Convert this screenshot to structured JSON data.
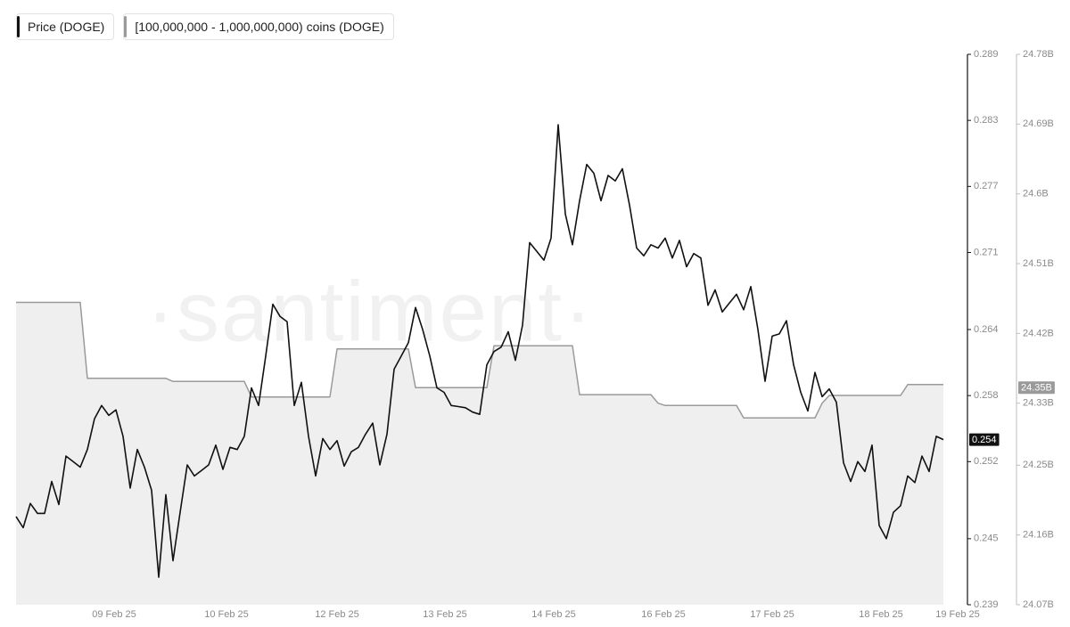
{
  "chart_data": {
    "type": "line",
    "watermark": "·santiment·",
    "series": [
      {
        "name": "Price (DOGE)",
        "color": "#111111",
        "axis": "y",
        "values": [
          0.247,
          0.246,
          0.2482,
          0.2473,
          0.2473,
          0.2502,
          0.2481,
          0.2525,
          0.252,
          0.2515,
          0.2531,
          0.2559,
          0.2571,
          0.2562,
          0.2567,
          0.2543,
          0.2496,
          0.2531,
          0.2515,
          0.2494,
          0.2415,
          0.249,
          0.243,
          0.2474,
          0.2517,
          0.2507,
          0.2512,
          0.2517,
          0.2535,
          0.2513,
          0.2533,
          0.2531,
          0.2543,
          0.2587,
          0.2571,
          0.2616,
          0.2663,
          0.2652,
          0.2647,
          0.2571,
          0.2592,
          0.2543,
          0.2507,
          0.2541,
          0.2531,
          0.2539,
          0.2516,
          0.2529,
          0.2533,
          0.2545,
          0.2555,
          0.2517,
          0.2545,
          0.2604,
          0.2616,
          0.2628,
          0.266,
          0.264,
          0.2616,
          0.2587,
          0.2583,
          0.2571,
          0.257,
          0.2569,
          0.2565,
          0.2563,
          0.2608,
          0.262,
          0.2624,
          0.2638,
          0.2612,
          0.2644,
          0.2719,
          0.2711,
          0.2703,
          0.2723,
          0.2826,
          0.2745,
          0.2717,
          0.2757,
          0.279,
          0.2782,
          0.2757,
          0.278,
          0.2775,
          0.2786,
          0.2753,
          0.2714,
          0.2707,
          0.2717,
          0.2714,
          0.2723,
          0.2705,
          0.2721,
          0.2697,
          0.2709,
          0.2705,
          0.2662,
          0.2676,
          0.2656,
          0.2664,
          0.2672,
          0.2658,
          0.2679,
          0.264,
          0.2593,
          0.2634,
          0.2636,
          0.2648,
          0.2608,
          0.2583,
          0.2566,
          0.2601,
          0.2579,
          0.2586,
          0.2574,
          0.2519,
          0.2502,
          0.252,
          0.2511,
          0.2535,
          0.2462,
          0.245,
          0.2474,
          0.248,
          0.2507,
          0.2501,
          0.2525,
          0.2511,
          0.2543,
          0.254
        ]
      },
      {
        "name": "[100,000,000 - 1,000,000,000) coins (DOGE)",
        "color": "#9a9a9a",
        "fill": "#efefef",
        "axis": "y2",
        "values": [
          24460000000,
          24460000000,
          24460000000,
          24460000000,
          24460000000,
          24460000000,
          24460000000,
          24460000000,
          24460000000,
          24460000000,
          24362000000,
          24362000000,
          24362000000,
          24362000000,
          24362000000,
          24362000000,
          24362000000,
          24362000000,
          24362000000,
          24362000000,
          24362000000,
          24362000000,
          24358000000,
          24358000000,
          24358000000,
          24358000000,
          24358000000,
          24358000000,
          24358000000,
          24358000000,
          24358000000,
          24358000000,
          24358000000,
          24338000000,
          24338000000,
          24338000000,
          24338000000,
          24338000000,
          24338000000,
          24338000000,
          24338000000,
          24338000000,
          24338000000,
          24338000000,
          24338000000,
          24400000000,
          24400000000,
          24400000000,
          24400000000,
          24400000000,
          24400000000,
          24400000000,
          24400000000,
          24400000000,
          24400000000,
          24400000000,
          24350000000,
          24350000000,
          24350000000,
          24350000000,
          24350000000,
          24350000000,
          24350000000,
          24350000000,
          24350000000,
          24350000000,
          24350000000,
          24404000000,
          24404000000,
          24404000000,
          24404000000,
          24404000000,
          24404000000,
          24404000000,
          24404000000,
          24404000000,
          24404000000,
          24404000000,
          24404000000,
          24341000000,
          24341000000,
          24341000000,
          24341000000,
          24341000000,
          24341000000,
          24341000000,
          24341000000,
          24341000000,
          24341000000,
          24341000000,
          24330000000,
          24327000000,
          24327000000,
          24327000000,
          24327000000,
          24327000000,
          24327000000,
          24327000000,
          24327000000,
          24327000000,
          24327000000,
          24327000000,
          24311000000,
          24311000000,
          24311000000,
          24311000000,
          24311000000,
          24311000000,
          24311000000,
          24311000000,
          24311000000,
          24311000000,
          24311000000,
          24330000000,
          24340000000,
          24340000000,
          24340000000,
          24340000000,
          24340000000,
          24340000000,
          24340000000,
          24340000000,
          24340000000,
          24340000000,
          24340000000,
          24354000000,
          24354000000,
          24354000000,
          24354000000,
          24354000000,
          24354000000
        ]
      }
    ],
    "xlim": [
      0,
      130
    ],
    "xticks": [
      {
        "value": 13.75,
        "label": "09 Feb 25"
      },
      {
        "value": 29.5,
        "label": "10 Feb 25"
      },
      {
        "value": 45,
        "label": "12 Feb 25"
      },
      {
        "value": 60.125,
        "label": "13 Feb 25"
      },
      {
        "value": 75.375,
        "label": "14 Feb 25"
      },
      {
        "value": 90.75,
        "label": "16 Feb 25"
      },
      {
        "value": 106,
        "label": "17 Feb 25"
      },
      {
        "value": 121.25,
        "label": "18 Feb 25"
      },
      {
        "value": 132,
        "label": "19 Feb 25"
      }
    ],
    "ylim": [
      0.239,
      0.289
    ],
    "yticks": [
      0.289,
      0.283,
      0.277,
      0.271,
      0.264,
      0.258,
      0.252,
      0.245,
      0.239
    ],
    "y2lim": [
      24070000000,
      24780000000
    ],
    "y2ticks": [
      {
        "value": 24780000000,
        "label": "24.78B"
      },
      {
        "value": 24690000000,
        "label": "24.69B"
      },
      {
        "value": 24600000000,
        "label": "24.6B"
      },
      {
        "value": 24510000000,
        "label": "24.51B"
      },
      {
        "value": 24420000000,
        "label": "24.42B"
      },
      {
        "value": 24330000000,
        "label": "24.33B"
      },
      {
        "value": 24250000000,
        "label": "24.25B"
      },
      {
        "value": 24160000000,
        "label": "24.16B"
      },
      {
        "value": 24070000000,
        "label": "24.07B"
      }
    ],
    "last_values": [
      {
        "value": 0.254,
        "label": "0.254",
        "axis": "y"
      },
      {
        "value": 24350000000,
        "label": "24.35B",
        "axis": "y2"
      }
    ]
  }
}
